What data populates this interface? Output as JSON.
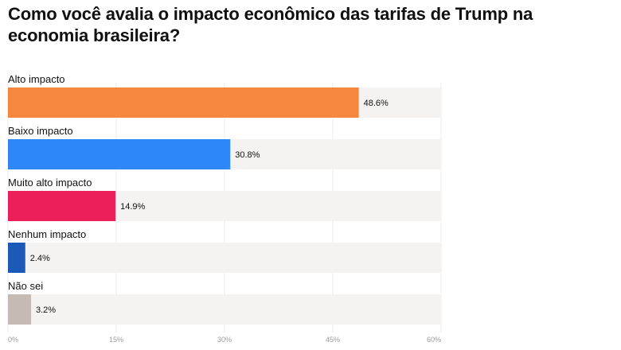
{
  "title": "Como você avalia o impacto econômico das tarifas de Trump na economia brasileira?",
  "chart_data": {
    "type": "bar",
    "orientation": "horizontal",
    "title": "Como você avalia o impacto econômico das tarifas de Trump na economia brasileira?",
    "categories": [
      "Alto impacto",
      "Baixo impacto",
      "Muito alto impacto",
      "Nenhum impacto",
      "Não sei"
    ],
    "values": [
      48.6,
      30.8,
      14.9,
      2.4,
      3.2
    ],
    "value_labels": [
      "48.6%",
      "30.8%",
      "14.9%",
      "2.4%",
      "3.2%"
    ],
    "colors": [
      "#f5873f",
      "#2f86f6",
      "#ec1f5a",
      "#1d5ab8",
      "#c6bab5"
    ],
    "track_color": "#f4f3f1",
    "xlim": [
      0,
      60
    ],
    "xticks": [
      0,
      15,
      30,
      45,
      60
    ],
    "xtick_labels": [
      "0%",
      "15%",
      "30%",
      "45%",
      "60%"
    ],
    "xlabel": "",
    "ylabel": "",
    "grid": true,
    "legend": "none"
  }
}
